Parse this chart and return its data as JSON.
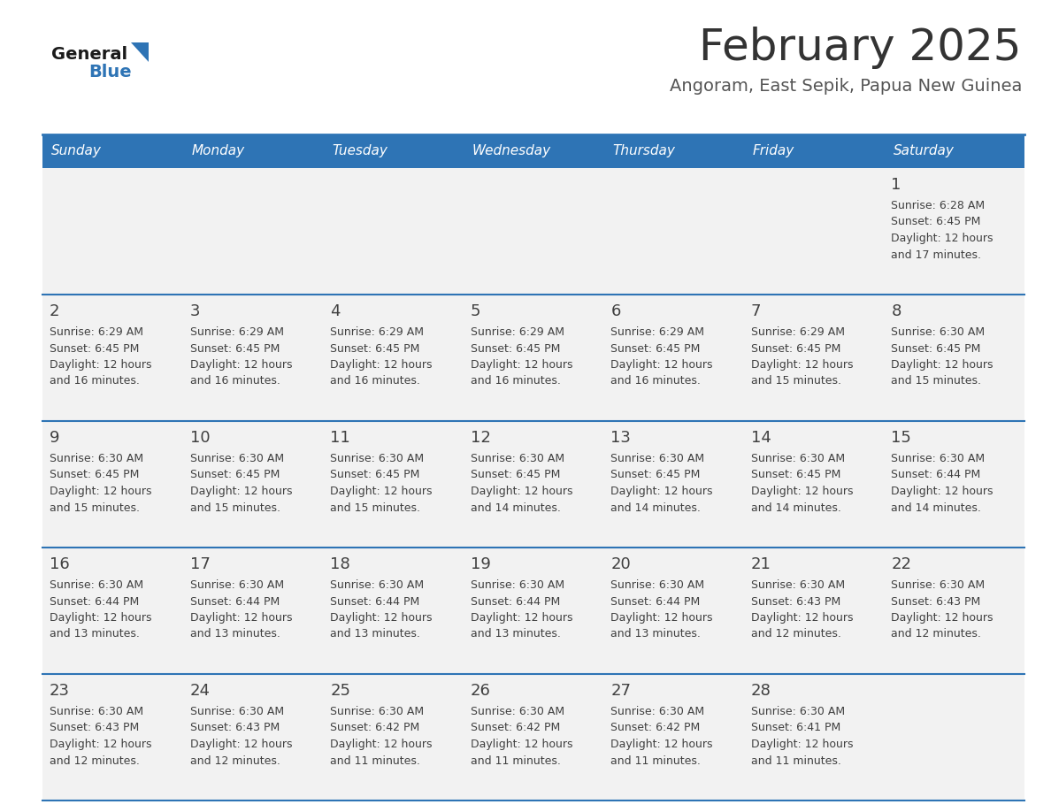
{
  "title": "February 2025",
  "subtitle": "Angoram, East Sepik, Papua New Guinea",
  "days_of_week": [
    "Sunday",
    "Monday",
    "Tuesday",
    "Wednesday",
    "Thursday",
    "Friday",
    "Saturday"
  ],
  "header_bg": "#2E74B5",
  "header_text": "#FFFFFF",
  "cell_bg": "#F2F2F2",
  "border_color": "#2E74B5",
  "text_color": "#404040",
  "title_color": "#333333",
  "subtitle_color": "#555555",
  "logo_general_color": "#1a1a1a",
  "logo_blue_color": "#2E74B5",
  "logo_triangle_color": "#2E74B5",
  "calendar": [
    [
      null,
      null,
      null,
      null,
      null,
      null,
      {
        "day": 1,
        "sunrise": "6:28 AM",
        "sunset": "6:45 PM",
        "daylight_hours": 12,
        "daylight_minutes": 17
      }
    ],
    [
      {
        "day": 2,
        "sunrise": "6:29 AM",
        "sunset": "6:45 PM",
        "daylight_hours": 12,
        "daylight_minutes": 16
      },
      {
        "day": 3,
        "sunrise": "6:29 AM",
        "sunset": "6:45 PM",
        "daylight_hours": 12,
        "daylight_minutes": 16
      },
      {
        "day": 4,
        "sunrise": "6:29 AM",
        "sunset": "6:45 PM",
        "daylight_hours": 12,
        "daylight_minutes": 16
      },
      {
        "day": 5,
        "sunrise": "6:29 AM",
        "sunset": "6:45 PM",
        "daylight_hours": 12,
        "daylight_minutes": 16
      },
      {
        "day": 6,
        "sunrise": "6:29 AM",
        "sunset": "6:45 PM",
        "daylight_hours": 12,
        "daylight_minutes": 16
      },
      {
        "day": 7,
        "sunrise": "6:29 AM",
        "sunset": "6:45 PM",
        "daylight_hours": 12,
        "daylight_minutes": 15
      },
      {
        "day": 8,
        "sunrise": "6:30 AM",
        "sunset": "6:45 PM",
        "daylight_hours": 12,
        "daylight_minutes": 15
      }
    ],
    [
      {
        "day": 9,
        "sunrise": "6:30 AM",
        "sunset": "6:45 PM",
        "daylight_hours": 12,
        "daylight_minutes": 15
      },
      {
        "day": 10,
        "sunrise": "6:30 AM",
        "sunset": "6:45 PM",
        "daylight_hours": 12,
        "daylight_minutes": 15
      },
      {
        "day": 11,
        "sunrise": "6:30 AM",
        "sunset": "6:45 PM",
        "daylight_hours": 12,
        "daylight_minutes": 15
      },
      {
        "day": 12,
        "sunrise": "6:30 AM",
        "sunset": "6:45 PM",
        "daylight_hours": 12,
        "daylight_minutes": 14
      },
      {
        "day": 13,
        "sunrise": "6:30 AM",
        "sunset": "6:45 PM",
        "daylight_hours": 12,
        "daylight_minutes": 14
      },
      {
        "day": 14,
        "sunrise": "6:30 AM",
        "sunset": "6:45 PM",
        "daylight_hours": 12,
        "daylight_minutes": 14
      },
      {
        "day": 15,
        "sunrise": "6:30 AM",
        "sunset": "6:44 PM",
        "daylight_hours": 12,
        "daylight_minutes": 14
      }
    ],
    [
      {
        "day": 16,
        "sunrise": "6:30 AM",
        "sunset": "6:44 PM",
        "daylight_hours": 12,
        "daylight_minutes": 13
      },
      {
        "day": 17,
        "sunrise": "6:30 AM",
        "sunset": "6:44 PM",
        "daylight_hours": 12,
        "daylight_minutes": 13
      },
      {
        "day": 18,
        "sunrise": "6:30 AM",
        "sunset": "6:44 PM",
        "daylight_hours": 12,
        "daylight_minutes": 13
      },
      {
        "day": 19,
        "sunrise": "6:30 AM",
        "sunset": "6:44 PM",
        "daylight_hours": 12,
        "daylight_minutes": 13
      },
      {
        "day": 20,
        "sunrise": "6:30 AM",
        "sunset": "6:44 PM",
        "daylight_hours": 12,
        "daylight_minutes": 13
      },
      {
        "day": 21,
        "sunrise": "6:30 AM",
        "sunset": "6:43 PM",
        "daylight_hours": 12,
        "daylight_minutes": 12
      },
      {
        "day": 22,
        "sunrise": "6:30 AM",
        "sunset": "6:43 PM",
        "daylight_hours": 12,
        "daylight_minutes": 12
      }
    ],
    [
      {
        "day": 23,
        "sunrise": "6:30 AM",
        "sunset": "6:43 PM",
        "daylight_hours": 12,
        "daylight_minutes": 12
      },
      {
        "day": 24,
        "sunrise": "6:30 AM",
        "sunset": "6:43 PM",
        "daylight_hours": 12,
        "daylight_minutes": 12
      },
      {
        "day": 25,
        "sunrise": "6:30 AM",
        "sunset": "6:42 PM",
        "daylight_hours": 12,
        "daylight_minutes": 11
      },
      {
        "day": 26,
        "sunrise": "6:30 AM",
        "sunset": "6:42 PM",
        "daylight_hours": 12,
        "daylight_minutes": 11
      },
      {
        "day": 27,
        "sunrise": "6:30 AM",
        "sunset": "6:42 PM",
        "daylight_hours": 12,
        "daylight_minutes": 11
      },
      {
        "day": 28,
        "sunrise": "6:30 AM",
        "sunset": "6:41 PM",
        "daylight_hours": 12,
        "daylight_minutes": 11
      },
      null
    ]
  ]
}
